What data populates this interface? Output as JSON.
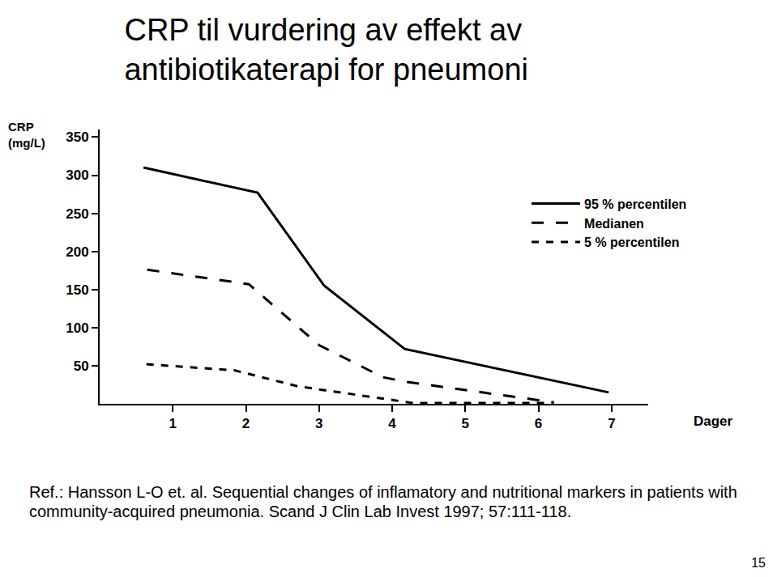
{
  "chart_data": {
    "type": "line",
    "title": "CRP til vurdering av effekt av antibiotikaterapi for pneumoni",
    "y_label": "CRP (mg/L)",
    "x_label": "Dager",
    "series": [
      {
        "name": "95 % percentilen",
        "color": "#000000",
        "line_style": "solid",
        "x": [
          0.6,
          2.16,
          3.07,
          4.17,
          6.96
        ],
        "values": [
          310,
          277,
          155,
          72,
          15
        ]
      },
      {
        "name": "Medianen",
        "color": "#000000",
        "line_style": "longdash",
        "x": [
          0.65,
          2.04,
          3.0,
          3.87,
          4.18,
          6.21
        ],
        "values": [
          176,
          157,
          77,
          35,
          29,
          2
        ]
      },
      {
        "name": "5 % percentilen",
        "color": "#000000",
        "line_style": "dash",
        "x": [
          0.64,
          1.84,
          2.71,
          3.96,
          4.29,
          6.21
        ],
        "values": [
          52,
          44,
          23,
          5,
          1,
          1
        ]
      }
    ],
    "xlim": [
      0,
      7.5
    ],
    "xticks": [
      1,
      2,
      3,
      4,
      5,
      6,
      7
    ],
    "ylim": [
      0,
      360
    ],
    "yticks": [
      50,
      100,
      150,
      200,
      250,
      300,
      350
    ],
    "grid": false,
    "legend": "upper right",
    "reference": "Ref.: Hansson L-O et. al. Sequential changes of inflamatory and nutritional markers in patients with community-acquired pneumonia. Scand J Clin Lab Invest 1997; 57:111-118.",
    "page_number": "15"
  }
}
